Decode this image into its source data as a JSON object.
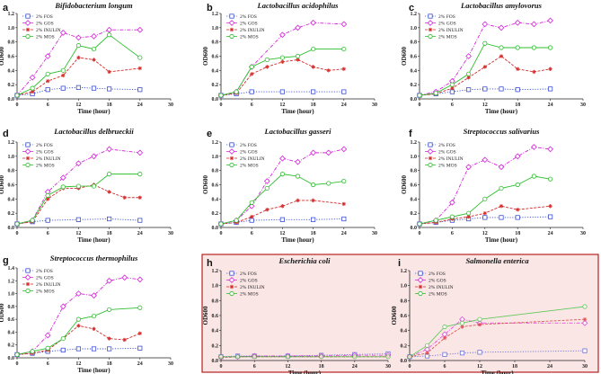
{
  "colors": {
    "FOS": "#3b4fd6",
    "GOS": "#d524d9",
    "INULIN": "#d42a2a",
    "MOS": "#2fbf2f",
    "highlight_border": "#b82020",
    "highlight_fill": "#fbe6e6"
  },
  "chart_data": [
    {
      "type": "line",
      "label": "a",
      "title": "Bifidobacterium longum",
      "xlabel": "Time (hour)",
      "ylabel": "OD600",
      "xlim": [
        0,
        30
      ],
      "ylim": [
        0,
        1.2
      ],
      "xticks": [
        0,
        6,
        12,
        18,
        24,
        30
      ],
      "yticks": [
        0.0,
        0.2,
        0.4,
        0.6,
        0.8,
        1.0,
        1.2
      ],
      "legend": [
        "2% FOS",
        "2% GOS",
        "2% INULIN",
        "2% MOS"
      ],
      "highlighted": false,
      "series": [
        {
          "name": "2% FOS",
          "x": [
            0,
            3,
            6,
            9,
            12,
            15,
            18,
            24
          ],
          "y": [
            0.05,
            0.07,
            0.13,
            0.15,
            0.16,
            0.15,
            0.14,
            0.13
          ]
        },
        {
          "name": "2% GOS",
          "x": [
            0,
            3,
            6,
            9,
            12,
            15,
            18,
            24
          ],
          "y": [
            0.05,
            0.3,
            0.6,
            0.93,
            0.86,
            0.88,
            0.97,
            0.97
          ]
        },
        {
          "name": "2% INULIN",
          "x": [
            0,
            3,
            6,
            9,
            12,
            15,
            18,
            24
          ],
          "y": [
            0.05,
            0.1,
            0.25,
            0.33,
            0.58,
            0.55,
            0.38,
            0.43
          ]
        },
        {
          "name": "2% MOS",
          "x": [
            0,
            3,
            6,
            9,
            12,
            15,
            18,
            24
          ],
          "y": [
            0.05,
            0.15,
            0.35,
            0.4,
            0.75,
            0.7,
            0.9,
            0.58
          ]
        }
      ]
    },
    {
      "type": "line",
      "label": "b",
      "title": "Lactobacillus acidophilus",
      "xlabel": "Time (hour)",
      "ylabel": "OD600",
      "xlim": [
        0,
        30
      ],
      "ylim": [
        0,
        1.2
      ],
      "xticks": [
        0,
        6,
        12,
        18,
        24,
        30
      ],
      "yticks": [
        0.0,
        0.2,
        0.4,
        0.6,
        0.8,
        1.0,
        1.2
      ],
      "legend": [
        "2% FOS",
        "2% GOS",
        "2% INULIN",
        "2% MOS"
      ],
      "highlighted": false,
      "series": [
        {
          "name": "2% FOS",
          "x": [
            0,
            3,
            6,
            12,
            18,
            24
          ],
          "y": [
            0.05,
            0.07,
            0.1,
            0.1,
            0.1,
            0.1
          ]
        },
        {
          "name": "2% GOS",
          "x": [
            0,
            3,
            6,
            12,
            15,
            18,
            24
          ],
          "y": [
            0.05,
            0.1,
            0.45,
            0.9,
            1.0,
            1.07,
            1.05
          ]
        },
        {
          "name": "2% INULIN",
          "x": [
            0,
            3,
            6,
            9,
            12,
            15,
            18,
            21,
            24
          ],
          "y": [
            0.05,
            0.08,
            0.35,
            0.45,
            0.52,
            0.55,
            0.45,
            0.4,
            0.42
          ]
        },
        {
          "name": "2% MOS",
          "x": [
            0,
            3,
            6,
            9,
            12,
            15,
            18,
            24
          ],
          "y": [
            0.05,
            0.1,
            0.45,
            0.55,
            0.58,
            0.6,
            0.7,
            0.7
          ]
        }
      ]
    },
    {
      "type": "line",
      "label": "c",
      "title": "Lactobacillus amylovorus",
      "xlabel": "Time (hour)",
      "ylabel": "OD600",
      "xlim": [
        0,
        30
      ],
      "ylim": [
        0,
        1.2
      ],
      "xticks": [
        0,
        6,
        12,
        18,
        24,
        30
      ],
      "yticks": [
        0.0,
        0.2,
        0.4,
        0.6,
        0.8,
        1.0,
        1.2
      ],
      "legend": [
        "2% FOS",
        "2% GOS",
        "2% INULIN",
        "2% MOS"
      ],
      "highlighted": false,
      "series": [
        {
          "name": "2% FOS",
          "x": [
            0,
            3,
            6,
            9,
            12,
            15,
            18,
            24
          ],
          "y": [
            0.05,
            0.07,
            0.1,
            0.13,
            0.14,
            0.14,
            0.13,
            0.14
          ]
        },
        {
          "name": "2% GOS",
          "x": [
            0,
            3,
            6,
            9,
            12,
            15,
            18,
            21,
            24
          ],
          "y": [
            0.05,
            0.1,
            0.25,
            0.6,
            1.05,
            1.0,
            1.07,
            1.05,
            1.1
          ]
        },
        {
          "name": "2% INULIN",
          "x": [
            0,
            3,
            6,
            9,
            12,
            15,
            18,
            21,
            24
          ],
          "y": [
            0.05,
            0.07,
            0.15,
            0.3,
            0.45,
            0.6,
            0.42,
            0.38,
            0.42
          ]
        },
        {
          "name": "2% MOS",
          "x": [
            0,
            3,
            6,
            9,
            12,
            15,
            18,
            21,
            24
          ],
          "y": [
            0.05,
            0.08,
            0.2,
            0.35,
            0.78,
            0.72,
            0.72,
            0.72,
            0.72
          ]
        }
      ]
    },
    {
      "type": "line",
      "label": "d",
      "title": "Lactobacillus delbrueckii",
      "xlabel": "Time (hour)",
      "ylabel": "OD600",
      "xlim": [
        0,
        30
      ],
      "ylim": [
        0,
        1.2
      ],
      "xticks": [
        0,
        6,
        12,
        18,
        24,
        30
      ],
      "yticks": [
        0.0,
        0.2,
        0.4,
        0.6,
        0.8,
        1.0,
        1.2
      ],
      "legend": [
        "2% FOS",
        "2% GOS",
        "2% INULIN",
        "2% MOS"
      ],
      "highlighted": false,
      "series": [
        {
          "name": "2% FOS",
          "x": [
            0,
            3,
            6,
            12,
            18,
            24
          ],
          "y": [
            0.05,
            0.08,
            0.1,
            0.11,
            0.12,
            0.1
          ]
        },
        {
          "name": "2% GOS",
          "x": [
            0,
            3,
            6,
            9,
            12,
            15,
            18,
            24
          ],
          "y": [
            0.05,
            0.1,
            0.5,
            0.7,
            0.9,
            1.0,
            1.1,
            1.05
          ]
        },
        {
          "name": "2% INULIN",
          "x": [
            0,
            3,
            6,
            9,
            12,
            15,
            18,
            21,
            24
          ],
          "y": [
            0.05,
            0.08,
            0.4,
            0.55,
            0.55,
            0.6,
            0.5,
            0.42,
            0.42
          ]
        },
        {
          "name": "2% MOS",
          "x": [
            0,
            3,
            6,
            9,
            12,
            15,
            18,
            24
          ],
          "y": [
            0.05,
            0.1,
            0.45,
            0.57,
            0.58,
            0.58,
            0.75,
            0.75
          ]
        }
      ]
    },
    {
      "type": "line",
      "label": "e",
      "title": "Lactobacillus gasseri",
      "xlabel": "Time (hour)",
      "ylabel": "OD600",
      "xlim": [
        0,
        30
      ],
      "ylim": [
        0,
        1.2
      ],
      "xticks": [
        0,
        6,
        12,
        18,
        24,
        30
      ],
      "yticks": [
        0.0,
        0.2,
        0.4,
        0.6,
        0.8,
        1.0,
        1.2
      ],
      "legend": [
        "2% FOS",
        "2% GOS",
        "2% INULIN",
        "2% MOS"
      ],
      "highlighted": false,
      "series": [
        {
          "name": "2% FOS",
          "x": [
            0,
            3,
            6,
            12,
            18,
            24
          ],
          "y": [
            0.05,
            0.07,
            0.1,
            0.11,
            0.11,
            0.12
          ]
        },
        {
          "name": "2% GOS",
          "x": [
            0,
            3,
            6,
            9,
            12,
            15,
            18,
            21,
            24
          ],
          "y": [
            0.05,
            0.1,
            0.3,
            0.65,
            0.97,
            0.92,
            1.05,
            1.05,
            1.1
          ]
        },
        {
          "name": "2% INULIN",
          "x": [
            0,
            3,
            6,
            9,
            12,
            15,
            18,
            24
          ],
          "y": [
            0.05,
            0.07,
            0.15,
            0.25,
            0.3,
            0.38,
            0.38,
            0.33
          ]
        },
        {
          "name": "2% MOS",
          "x": [
            0,
            3,
            6,
            9,
            12,
            15,
            18,
            21,
            24
          ],
          "y": [
            0.05,
            0.1,
            0.35,
            0.55,
            0.75,
            0.72,
            0.6,
            0.62,
            0.65
          ]
        }
      ]
    },
    {
      "type": "line",
      "label": "f",
      "title": "Streptococcus salivarius",
      "xlabel": "Time (hour)",
      "ylabel": "OD600",
      "xlim": [
        0,
        30
      ],
      "ylim": [
        0,
        1.2
      ],
      "xticks": [
        0,
        6,
        12,
        18,
        24,
        30
      ],
      "yticks": [
        0.0,
        0.2,
        0.4,
        0.6,
        0.8,
        1.0,
        1.2
      ],
      "legend": [
        "2% FOS",
        "2% GOS",
        "2% INULIN",
        "2% MOS"
      ],
      "highlighted": false,
      "series": [
        {
          "name": "2% FOS",
          "x": [
            0,
            3,
            6,
            9,
            12,
            15,
            18,
            24
          ],
          "y": [
            0.05,
            0.07,
            0.1,
            0.12,
            0.14,
            0.14,
            0.14,
            0.15
          ]
        },
        {
          "name": "2% GOS",
          "x": [
            0,
            3,
            6,
            9,
            12,
            15,
            18,
            21,
            24
          ],
          "y": [
            0.05,
            0.1,
            0.35,
            0.85,
            0.95,
            0.85,
            1.0,
            1.13,
            1.1
          ]
        },
        {
          "name": "2% INULIN",
          "x": [
            0,
            3,
            6,
            9,
            12,
            15,
            18,
            24
          ],
          "y": [
            0.05,
            0.07,
            0.12,
            0.15,
            0.2,
            0.3,
            0.25,
            0.3
          ]
        },
        {
          "name": "2% MOS",
          "x": [
            0,
            3,
            6,
            9,
            12,
            15,
            18,
            21,
            24
          ],
          "y": [
            0.05,
            0.1,
            0.15,
            0.2,
            0.4,
            0.55,
            0.6,
            0.72,
            0.68
          ]
        }
      ]
    },
    {
      "type": "line",
      "label": "g",
      "title": "Streptococcus thermophilus",
      "xlabel": "Time (hour)",
      "ylabel": "OD600",
      "xlim": [
        0,
        30
      ],
      "ylim": [
        0,
        1.4
      ],
      "xticks": [
        0,
        6,
        12,
        18,
        24,
        30
      ],
      "yticks": [
        0.0,
        0.2,
        0.4,
        0.6,
        0.8,
        1.0,
        1.2,
        1.4
      ],
      "legend": [
        "2% FOS",
        "2% GOS",
        "2% INULIN",
        "2% MOS"
      ],
      "highlighted": false,
      "series": [
        {
          "name": "2% FOS",
          "x": [
            0,
            3,
            6,
            9,
            12,
            15,
            18,
            24
          ],
          "y": [
            0.05,
            0.07,
            0.1,
            0.12,
            0.14,
            0.14,
            0.14,
            0.15
          ]
        },
        {
          "name": "2% GOS",
          "x": [
            0,
            3,
            6,
            9,
            12,
            15,
            18,
            21,
            24
          ],
          "y": [
            0.05,
            0.1,
            0.35,
            0.8,
            1.0,
            0.97,
            1.2,
            1.25,
            1.22
          ]
        },
        {
          "name": "2% INULIN",
          "x": [
            0,
            3,
            6,
            9,
            12,
            15,
            18,
            21,
            24
          ],
          "y": [
            0.05,
            0.07,
            0.12,
            0.3,
            0.5,
            0.45,
            0.3,
            0.28,
            0.38
          ]
        },
        {
          "name": "2% MOS",
          "x": [
            0,
            3,
            6,
            9,
            12,
            15,
            18,
            24
          ],
          "y": [
            0.05,
            0.1,
            0.15,
            0.3,
            0.6,
            0.65,
            0.75,
            0.78
          ]
        }
      ]
    },
    {
      "type": "line",
      "label": "h",
      "title": "Escherichia coli",
      "xlabel": "Time (hour)",
      "ylabel": "OD600",
      "xlim": [
        0,
        30
      ],
      "ylim": [
        0,
        1.2
      ],
      "xticks": [
        0,
        6,
        12,
        18,
        24,
        30
      ],
      "yticks": [
        0.0,
        0.2,
        0.4,
        0.6,
        0.8,
        1.0,
        1.2
      ],
      "legend": [
        "2% FOS",
        "2% GOS",
        "2% INULIN",
        "2% MOS"
      ],
      "highlighted": true,
      "series": [
        {
          "name": "2% FOS",
          "x": [
            0,
            3,
            6,
            12,
            18,
            24,
            30
          ],
          "y": [
            0.05,
            0.06,
            0.06,
            0.06,
            0.07,
            0.08,
            0.09
          ]
        },
        {
          "name": "2% GOS",
          "x": [
            0,
            3,
            6,
            12,
            18,
            24,
            30
          ],
          "y": [
            0.05,
            0.05,
            0.06,
            0.06,
            0.06,
            0.07,
            0.07
          ]
        },
        {
          "name": "2% INULIN",
          "x": [
            0,
            3,
            6,
            12,
            18,
            24,
            30
          ],
          "y": [
            0.04,
            0.05,
            0.05,
            0.05,
            0.05,
            0.05,
            0.05
          ]
        },
        {
          "name": "2% MOS",
          "x": [
            0,
            3,
            6,
            12,
            18,
            24,
            30
          ],
          "y": [
            0.05,
            0.05,
            0.05,
            0.05,
            0.05,
            0.05,
            0.05
          ]
        }
      ]
    },
    {
      "type": "line",
      "label": "i",
      "title": "Salmonella enterica",
      "xlabel": "Time (hour)",
      "ylabel": "OD600",
      "xlim": [
        0,
        30
      ],
      "ylim": [
        0,
        1.2
      ],
      "xticks": [
        0,
        6,
        12,
        18,
        24,
        30
      ],
      "yticks": [
        0.0,
        0.2,
        0.4,
        0.6,
        0.8,
        1.0,
        1.2
      ],
      "legend": [
        "2% FOS",
        "2% GOS",
        "2% INULIN",
        "2% MOS"
      ],
      "highlighted": true,
      "series": [
        {
          "name": "2% FOS",
          "x": [
            0,
            3,
            6,
            9,
            12,
            30
          ],
          "y": [
            0.05,
            0.06,
            0.08,
            0.1,
            0.11,
            0.13
          ]
        },
        {
          "name": "2% GOS",
          "x": [
            0,
            3,
            6,
            9,
            12,
            30
          ],
          "y": [
            0.05,
            0.15,
            0.35,
            0.55,
            0.5,
            0.5
          ]
        },
        {
          "name": "2% INULIN",
          "x": [
            0,
            3,
            6,
            9,
            12,
            30
          ],
          "y": [
            0.05,
            0.1,
            0.3,
            0.45,
            0.48,
            0.55
          ]
        },
        {
          "name": "2% MOS",
          "x": [
            0,
            3,
            6,
            9,
            12,
            30
          ],
          "y": [
            0.05,
            0.2,
            0.45,
            0.5,
            0.55,
            0.72
          ]
        }
      ]
    }
  ]
}
